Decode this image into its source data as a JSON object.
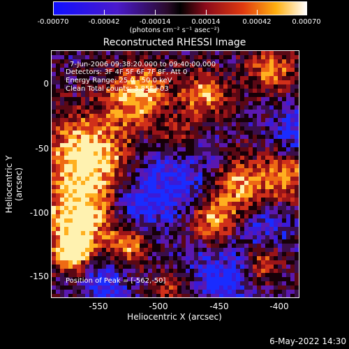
{
  "colorbar": {
    "ticks": [
      "-0.00070",
      "-0.00042",
      "-0.00014",
      "0.00014",
      "0.00042",
      "0.00070"
    ],
    "units_label": "(photons cm⁻² s⁻¹ asec⁻²)"
  },
  "title": "Reconstructed RHESSI Image",
  "annotations": {
    "time": "7-Jun-2006 09:38:20.000 to 09:40:00.000",
    "detectors": "Detectors: 3F 4F 5F 6F 7F 8F, Att 0",
    "energy": "Energy Range: 25.0 - 50.0 keV",
    "clean": "Clean    Total counts: 3.85E+03",
    "peak": "Position of Peak = [-562,-50]"
  },
  "axes": {
    "xlabel": "Heliocentric X (arcsec)",
    "ylabel": "Heliocentric Y (arcsec)",
    "xticks": [
      "-550",
      "-500",
      "-450",
      "-400"
    ],
    "yticks": [
      "0",
      "-50",
      "-100",
      "-150"
    ]
  },
  "footer": "6-May-2022 14:30",
  "colors": {
    "background": "#000000",
    "text": "#ffffff"
  }
}
